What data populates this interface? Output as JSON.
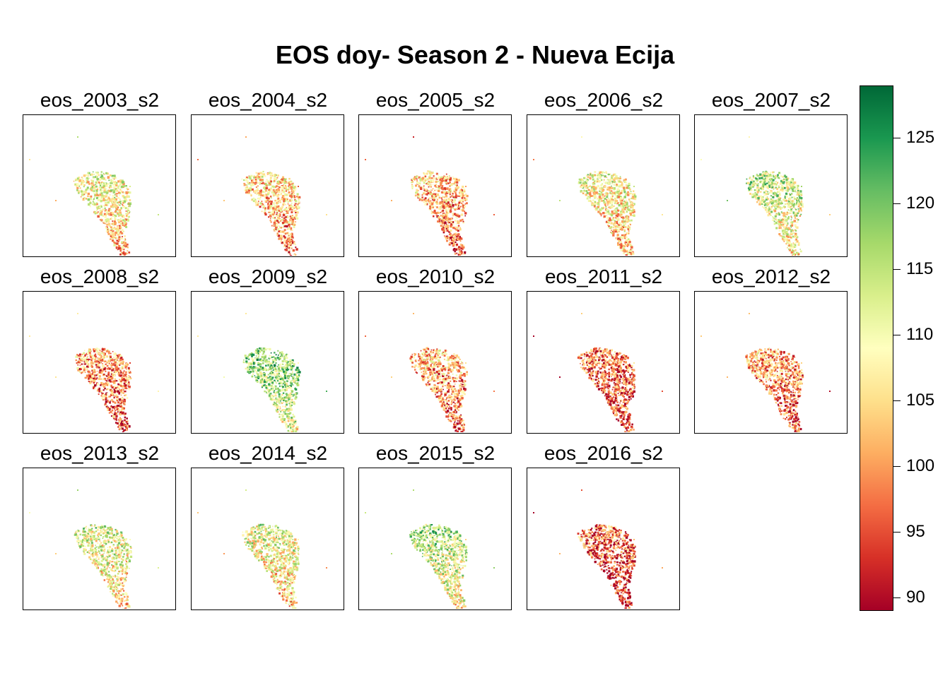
{
  "title": "EOS doy- Season 2 - Nueva Ecija",
  "panels": [
    {
      "label": "eos_2003_s2",
      "tone": 0.45
    },
    {
      "label": "eos_2004_s2",
      "tone": 0.35
    },
    {
      "label": "eos_2005_s2",
      "tone": 0.3
    },
    {
      "label": "eos_2006_s2",
      "tone": 0.45
    },
    {
      "label": "eos_2007_s2",
      "tone": 0.55
    },
    {
      "label": "eos_2008_s2",
      "tone": 0.25
    },
    {
      "label": "eos_2009_s2",
      "tone": 0.65
    },
    {
      "label": "eos_2010_s2",
      "tone": 0.28
    },
    {
      "label": "eos_2011_s2",
      "tone": 0.18
    },
    {
      "label": "eos_2012_s2",
      "tone": 0.25
    },
    {
      "label": "eos_2013_s2",
      "tone": 0.5
    },
    {
      "label": "eos_2014_s2",
      "tone": 0.48
    },
    {
      "label": "eos_2015_s2",
      "tone": 0.58
    },
    {
      "label": "eos_2016_s2",
      "tone": 0.15
    }
  ],
  "legend": {
    "min": 89,
    "max": 129,
    "ticks": [
      90,
      95,
      100,
      105,
      110,
      115,
      120,
      125
    ],
    "tick_labels": [
      "90",
      "95",
      "100",
      "105",
      "110",
      "115",
      "120",
      "125"
    ],
    "palette": [
      "#a50026",
      "#d73027",
      "#f46d43",
      "#fdae61",
      "#fee08b",
      "#ffffbf",
      "#d9ef8b",
      "#a6d96a",
      "#66bd63",
      "#1a9850",
      "#006837"
    ]
  }
}
